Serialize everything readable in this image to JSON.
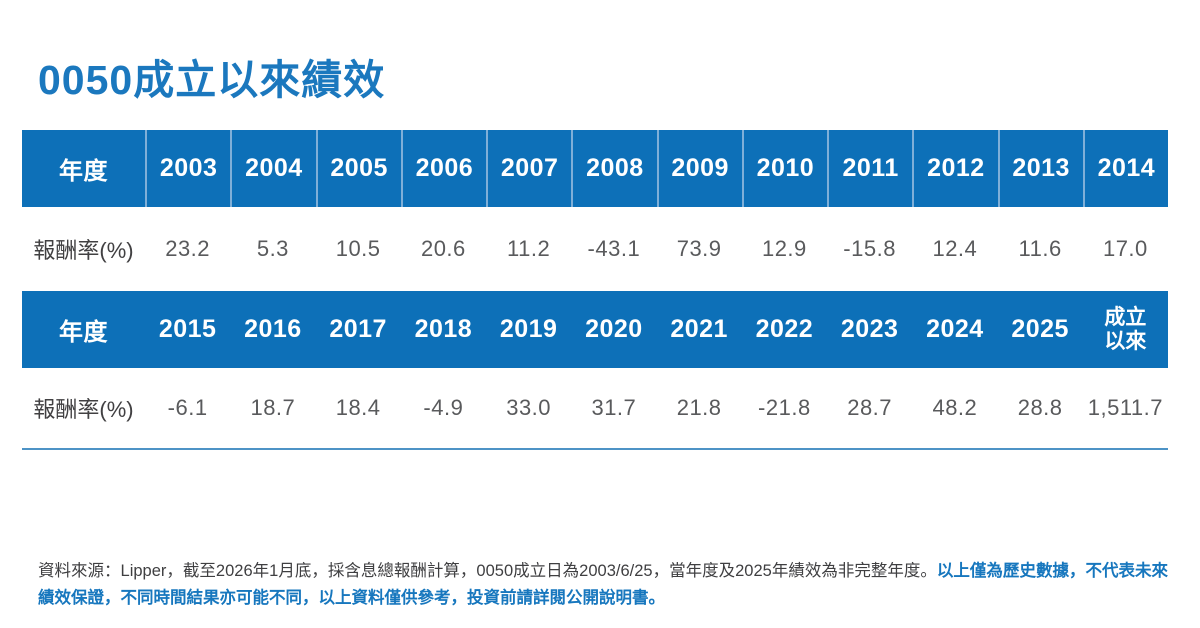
{
  "title": "0050成立以來績效",
  "colors": {
    "header_bg": "#0D70B8",
    "title_text": "#1B78BE",
    "header_divider": "#7FAFD8",
    "bottom_rule": "#4D93C6",
    "value_text": "#595A5C",
    "label_text": "#414042",
    "footnote_highlight": "#1777BE"
  },
  "table_top": {
    "year_label": "年度",
    "return_label": "報酬率(%)",
    "years": [
      "2003",
      "2004",
      "2005",
      "2006",
      "2007",
      "2008",
      "2009",
      "2010",
      "2011",
      "2012",
      "2013",
      "2014"
    ],
    "returns": [
      "23.2",
      "5.3",
      "10.5",
      "20.6",
      "11.2",
      "-43.1",
      "73.9",
      "12.9",
      "-15.8",
      "12.4",
      "11.6",
      "17.0"
    ]
  },
  "table_bottom": {
    "year_label": "年度",
    "return_label": "報酬率(%)",
    "years": [
      "2015",
      "2016",
      "2017",
      "2018",
      "2019",
      "2020",
      "2021",
      "2022",
      "2023",
      "2024",
      "2025",
      "成立以來"
    ],
    "returns": [
      "-6.1",
      "18.7",
      "18.4",
      "-4.9",
      "33.0",
      "31.7",
      "21.8",
      "-21.8",
      "28.7",
      "48.2",
      "28.8",
      "1,511.7"
    ]
  },
  "footnote": {
    "normal": "資料來源：Lipper，截至2026年1月底，採含息總報酬計算，0050成立日為2003/6/25，當年度及2025年績效為非完整年度。",
    "highlight": "以上僅為歷史數據，不代表未來績效保證，不同時間結果亦可能不同，以上資料僅供參考，投資前請詳閱公開說明書。"
  },
  "chart_data": {
    "type": "table",
    "title": "0050成立以來績效",
    "row_label": "報酬率(%)",
    "unit": "%",
    "categories": [
      "2003",
      "2004",
      "2005",
      "2006",
      "2007",
      "2008",
      "2009",
      "2010",
      "2011",
      "2012",
      "2013",
      "2014",
      "2015",
      "2016",
      "2017",
      "2018",
      "2019",
      "2020",
      "2021",
      "2022",
      "2023",
      "2024",
      "2025",
      "成立以來"
    ],
    "values": [
      23.2,
      5.3,
      10.5,
      20.6,
      11.2,
      -43.1,
      73.9,
      12.9,
      -15.8,
      12.4,
      11.6,
      17.0,
      -6.1,
      18.7,
      18.4,
      -4.9,
      33.0,
      31.7,
      21.8,
      -21.8,
      28.7,
      48.2,
      28.8,
      1511.7
    ],
    "notes": "annual total returns with dividends reinvested; 成立以來 = since inception"
  }
}
